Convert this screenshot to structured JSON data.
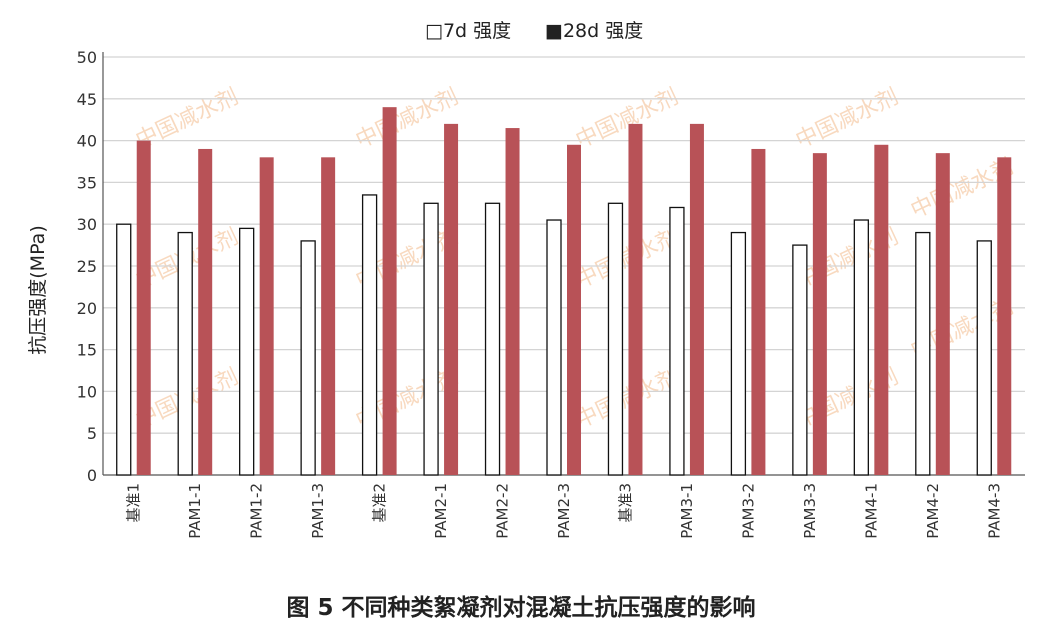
{
  "chart_data": {
    "type": "bar",
    "title": "图 5  不同种类絮凝剂对混凝土抗压强度的影响",
    "xlabel": "",
    "ylabel": "抗压强度(MPa)",
    "ylim": [
      0,
      50
    ],
    "yticks": [
      0,
      5,
      10,
      15,
      20,
      25,
      30,
      35,
      40,
      45,
      50
    ],
    "grid": true,
    "legend_placement": "top-center",
    "categories": [
      "基准1",
      "PAM1-1",
      "PAM1-2",
      "PAM1-3",
      "基准2",
      "PAM2-1",
      "PAM2-2",
      "PAM2-3",
      "基准3",
      "PAM3-1",
      "PAM3-2",
      "PAM3-3",
      "PAM4-1",
      "PAM4-2",
      "PAM4-3"
    ],
    "series": [
      {
        "name": "7d 强度",
        "legend_label": "□7d 强度",
        "color": "#ffffff",
        "values": [
          30,
          29,
          29.5,
          28,
          33.5,
          32.5,
          32.5,
          30.5,
          32.5,
          32,
          29,
          27.5,
          30.5,
          29,
          28
        ]
      },
      {
        "name": "28d 强度",
        "legend_label": "■28d 强度",
        "color": "#b85257",
        "values": [
          40,
          39,
          38,
          38,
          44,
          42,
          41.5,
          39.5,
          42,
          42,
          39,
          38.5,
          39.5,
          38.5,
          38
        ]
      }
    ]
  },
  "watermark": "中国减水剂"
}
